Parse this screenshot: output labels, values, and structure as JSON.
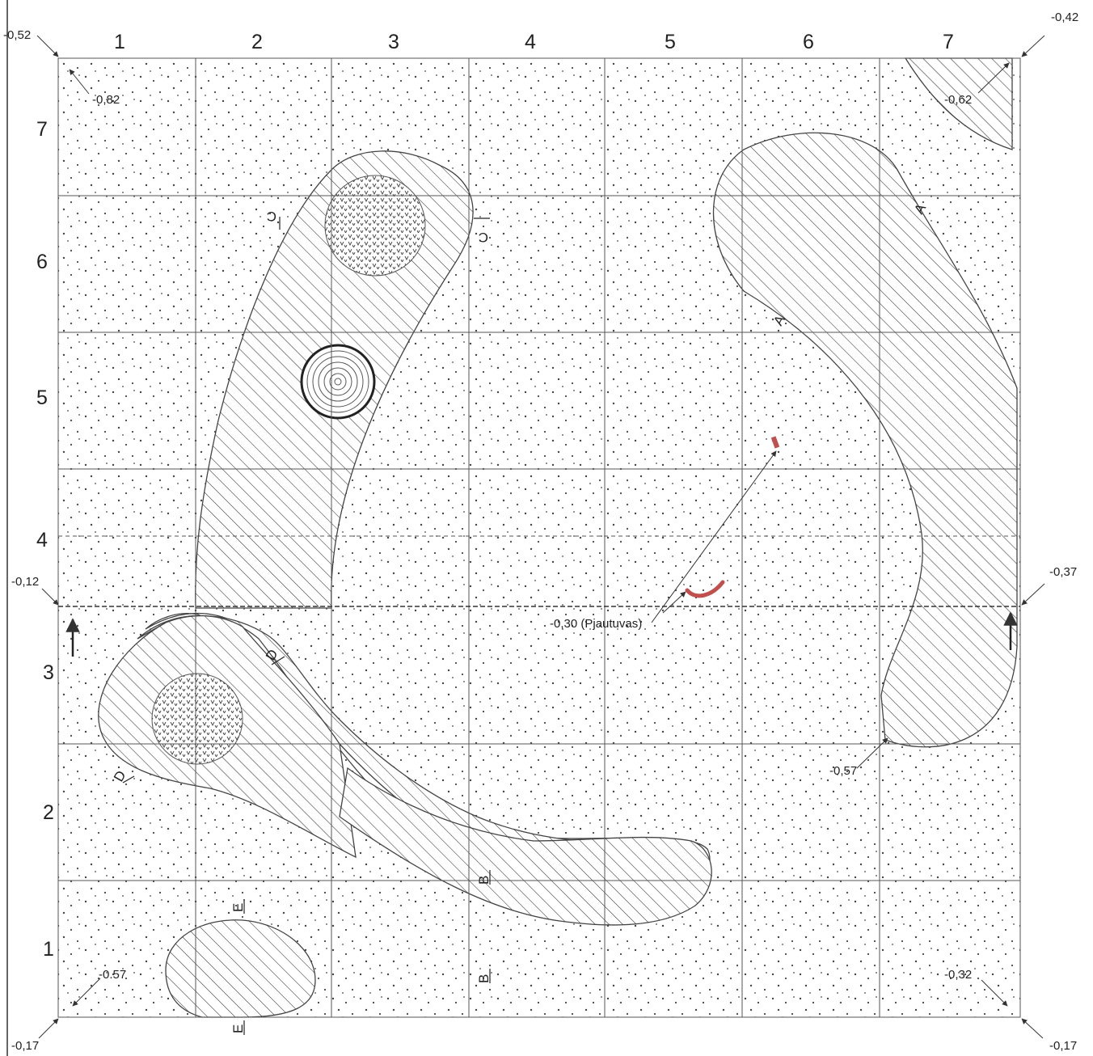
{
  "plan": {
    "column_labels": [
      "1",
      "2",
      "3",
      "4",
      "5",
      "6",
      "7"
    ],
    "row_labels": [
      "7",
      "6",
      "5",
      "4",
      "3",
      "2",
      "1"
    ],
    "corner_levels": {
      "top_left": "-0,52",
      "top_right": "-0,42",
      "bottom_left": "-0,17",
      "bottom_right": "-0,17",
      "left_mid": "-0,12",
      "right_mid": "-0,37"
    },
    "inner_levels": {
      "nw": "-0,82",
      "ne": "-0,62",
      "sw": "-0.57",
      "se": "-0,32",
      "east_pit": "-0,57"
    },
    "find_annotation": "-0,30 (Pjautuvas)",
    "section_marks": {
      "a": "A",
      "b": "B",
      "c": "C",
      "d": "D",
      "e": "E"
    },
    "colors": {
      "grid": "#555555",
      "hatch": "#333333",
      "dots": "#444444",
      "find": "#c0504d"
    },
    "legend_patterns": [
      "dotted-sand",
      "hatched-fill",
      "charcoal-stipple",
      "concentric-post"
    ]
  }
}
